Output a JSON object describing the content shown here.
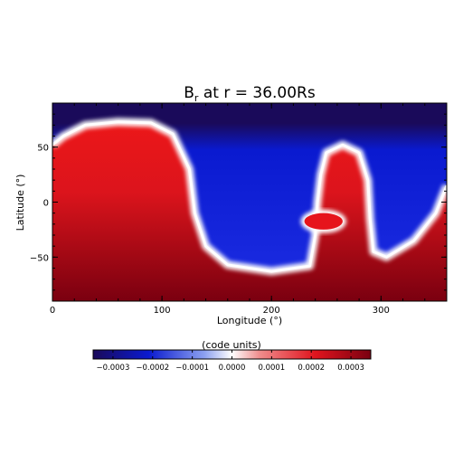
{
  "chart_data": {
    "type": "heatmap",
    "title_main": "B",
    "title_sub": "r",
    "title_rest": " at r = 36.00Rs",
    "xlabel": "Longitude (°)",
    "ylabel": "Latitude (°)",
    "xlim": [
      0,
      360
    ],
    "ylim": [
      -90,
      90
    ],
    "xticks": [
      0,
      100,
      200,
      300
    ],
    "xtick_labels": [
      "0",
      "100",
      "200",
      "300"
    ],
    "yticks": [
      -50,
      0,
      50
    ],
    "ytick_labels": [
      "−50",
      "0",
      "50"
    ],
    "colorbar": {
      "label": "(code units)",
      "range": [
        -0.00035,
        0.00035
      ],
      "ticks": [
        -0.0003,
        -0.0002,
        -0.0001,
        0.0,
        0.0001,
        0.0002,
        0.0003
      ],
      "tick_labels": [
        "−0.0003",
        "−0.0002",
        "−0.0001",
        "0.0000",
        "0.0001",
        "0.0002",
        "0.0003"
      ],
      "colors": [
        "#1a0a5a",
        "#0a1ad0",
        "#8ca0f0",
        "#ffffff",
        "#f08c8c",
        "#e0141e",
        "#7a0010"
      ]
    },
    "field": {
      "description_of_structure": "neutral line (longitude, latitude) separating negative (north) and positive (south) polarity",
      "neutral_line": [
        [
          0,
          52
        ],
        [
          10,
          60
        ],
        [
          30,
          70
        ],
        [
          60,
          73
        ],
        [
          90,
          72
        ],
        [
          110,
          62
        ],
        [
          125,
          30
        ],
        [
          130,
          -10
        ],
        [
          140,
          -40
        ],
        [
          160,
          -57
        ],
        [
          200,
          -63
        ],
        [
          235,
          -58
        ],
        [
          240,
          -30
        ],
        [
          242,
          0
        ],
        [
          245,
          25
        ],
        [
          250,
          45
        ],
        [
          265,
          52
        ],
        [
          280,
          45
        ],
        [
          288,
          20
        ],
        [
          290,
          -15
        ],
        [
          293,
          -45
        ],
        [
          305,
          -50
        ],
        [
          330,
          -35
        ],
        [
          350,
          -10
        ],
        [
          360,
          15
        ]
      ],
      "positive_islands": [
        [
          -25,
          265,
          -10,
          230
        ]
      ]
    }
  }
}
